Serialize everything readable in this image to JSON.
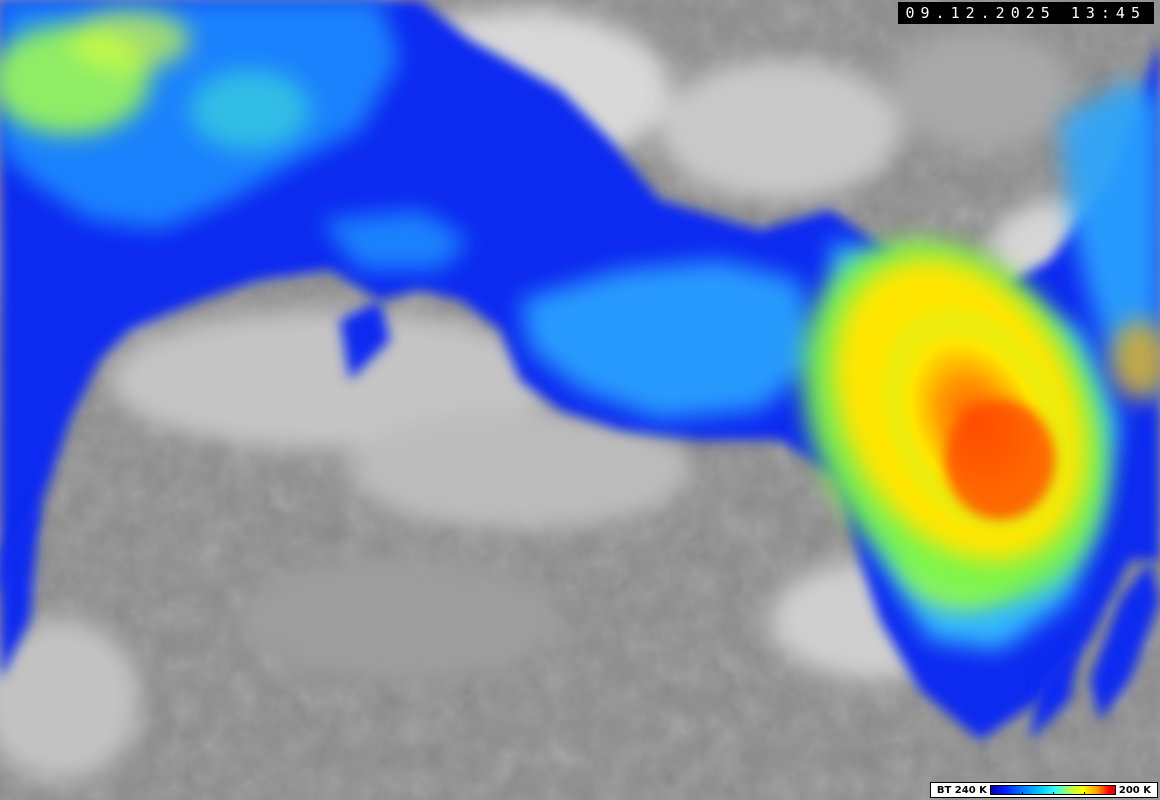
{
  "timestamp": "09.12.2025 13:45",
  "legend": {
    "min_label": "BT 240 K",
    "max_label": "200 K",
    "colors": [
      "#0000aa",
      "#0022ff",
      "#0088ff",
      "#00ccff",
      "#33ffee",
      "#aaff55",
      "#ffff00",
      "#ff9900",
      "#ff0000",
      "#dd0000"
    ]
  }
}
